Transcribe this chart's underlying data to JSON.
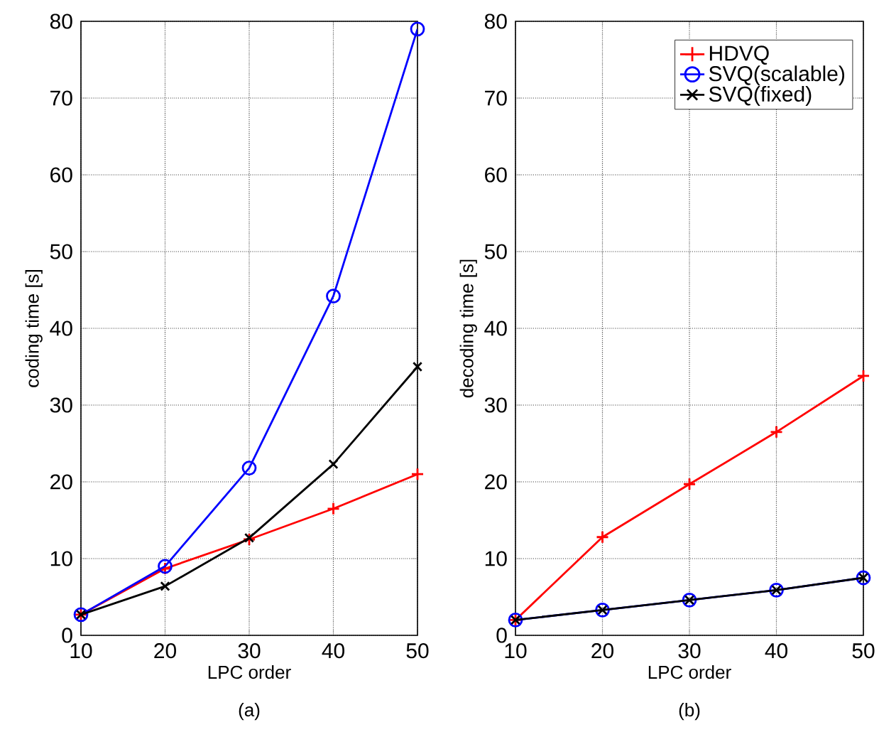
{
  "chart_data": [
    {
      "type": "line",
      "xlabel": "LPC order",
      "ylabel": "coding time [s]",
      "annotations": [
        "(a)"
      ],
      "x": [
        10,
        20,
        30,
        40,
        50
      ],
      "xlim": [
        10,
        50
      ],
      "ylim": [
        0,
        80
      ],
      "xticks": [
        10,
        20,
        30,
        40,
        50
      ],
      "yticks": [
        0,
        10,
        20,
        30,
        40,
        50,
        60,
        70,
        80
      ],
      "grid": true,
      "legend": false,
      "line_style": "solid",
      "series": [
        {
          "color": "#ff0000",
          "marker": "plus",
          "values": [
            2.7,
            8.7,
            12.5,
            16.5,
            21
          ]
        },
        {
          "color": "#0000ff",
          "marker": "circle",
          "values": [
            2.7,
            9,
            21.8,
            44.2,
            79
          ]
        },
        {
          "color": "#000000",
          "marker": "cross",
          "values": [
            2.7,
            6.4,
            12.7,
            22.3,
            35
          ]
        }
      ]
    },
    {
      "type": "line",
      "xlabel": "LPC order",
      "ylabel": "decoding time [s]",
      "annotations": [
        "(b)"
      ],
      "x": [
        10,
        20,
        30,
        40,
        50
      ],
      "xlim": [
        10,
        50
      ],
      "ylim": [
        0,
        80
      ],
      "xticks": [
        10,
        20,
        30,
        40,
        50
      ],
      "yticks": [
        0,
        10,
        20,
        30,
        40,
        50,
        60,
        70,
        80
      ],
      "grid": true,
      "legend": "top right",
      "line_style": "solid",
      "series": [
        {
          "name": "HDVQ",
          "color": "#ff0000",
          "marker": "plus",
          "values": [
            2,
            12.8,
            19.7,
            26.5,
            33.8
          ]
        },
        {
          "name": "SVQ(scalable)",
          "color": "#0000ff",
          "marker": "circle",
          "values": [
            2,
            3.3,
            4.6,
            5.9,
            7.5
          ]
        },
        {
          "name": "SVQ(fixed)",
          "color": "#000000",
          "marker": "cross",
          "values": [
            2,
            3.3,
            4.6,
            5.9,
            7.5
          ]
        }
      ]
    }
  ]
}
